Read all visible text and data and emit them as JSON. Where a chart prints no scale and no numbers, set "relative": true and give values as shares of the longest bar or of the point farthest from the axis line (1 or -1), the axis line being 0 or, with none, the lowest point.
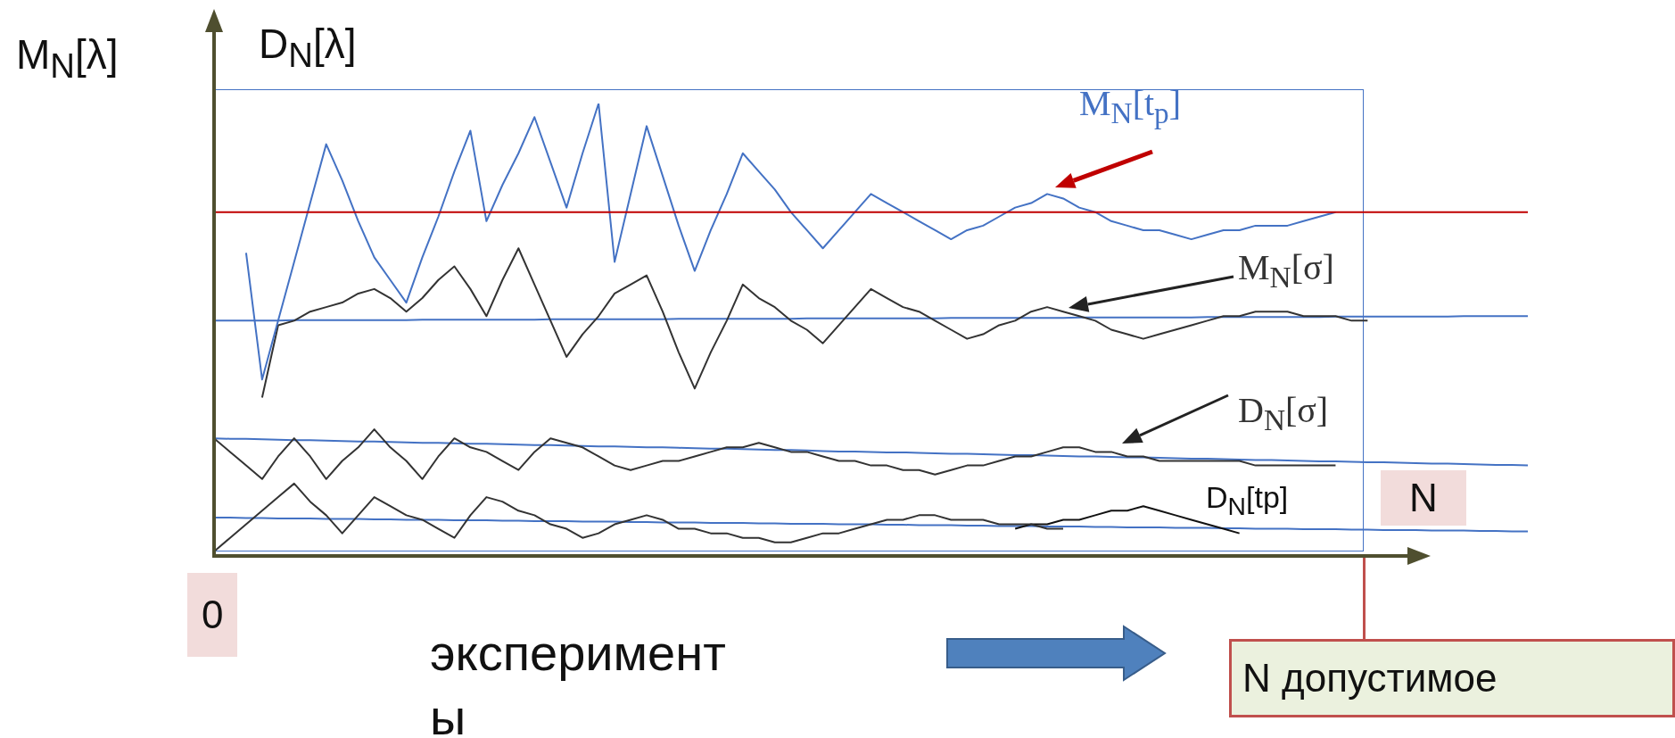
{
  "chart_data": {
    "type": "line",
    "relative": true,
    "ylabel": "M$_{N}$[λ]",
    "xlabel": "эксперименты",
    "annotations": [
      "D$_{N}$[λ]",
      "N",
      "0",
      "N допустимое"
    ],
    "categories": [
      null,
      null,
      null,
      null,
      null,
      null,
      null,
      null,
      null,
      null,
      null,
      null,
      null,
      null,
      null,
      null,
      null,
      null,
      null,
      null,
      null,
      null,
      null,
      null,
      null,
      null,
      null,
      null,
      null,
      null,
      null,
      null,
      null,
      null,
      null,
      null,
      null,
      null,
      null,
      null,
      null,
      null,
      null,
      null,
      null,
      null,
      null,
      null,
      null,
      null,
      null,
      null,
      null,
      null,
      null,
      null,
      null,
      null,
      null,
      null,
      null,
      null,
      null,
      null,
      null,
      null,
      null,
      null,
      null,
      null,
      null,
      null,
      null,
      null,
      null,
      null,
      null,
      null,
      null,
      null,
      null,
      null,
      null
    ],
    "ref_lines": [
      {
        "axis": "y",
        "value": 0.76,
        "color": "#c00000"
      }
    ],
    "series": [
      {
        "name": "M$_{N}$[t$_{p}$]",
        "color": "#4472c4",
        "values": [
          null,
          null,
          0.67,
          0.39,
          0.52,
          0.65,
          0.78,
          0.91,
          0.83,
          0.74,
          0.66,
          0.61,
          0.56,
          0.66,
          0.75,
          0.85,
          0.94,
          0.74,
          0.82,
          0.89,
          0.97,
          0.87,
          0.77,
          0.89,
          1,
          0.65,
          0.8,
          0.95,
          0.84,
          0.73,
          0.63,
          0.72,
          0.8,
          0.89,
          0.85,
          0.81,
          0.76,
          0.72,
          0.68,
          0.72,
          0.76,
          0.8,
          0.78,
          0.76,
          0.74,
          0.72,
          0.7,
          0.72,
          0.73,
          0.75,
          0.77,
          0.78,
          0.8,
          0.79,
          0.77,
          0.76,
          0.74,
          0.73,
          0.72,
          0.72,
          0.71,
          0.7,
          0.71,
          0.72,
          0.72,
          0.73,
          0.73,
          0.73,
          0.74,
          0.75,
          0.76,
          null,
          null,
          null,
          null,
          null,
          null,
          null,
          null,
          null,
          null,
          null,
          null
        ]
      },
      {
        "name": "M$_{N}$[σ]",
        "color": "#333333",
        "values": [
          null,
          null,
          null,
          0.35,
          0.51,
          0.52,
          0.54,
          0.55,
          0.56,
          0.58,
          0.59,
          0.57,
          0.54,
          0.57,
          0.61,
          0.64,
          0.59,
          0.53,
          0.61,
          0.68,
          0.6,
          0.52,
          0.44,
          0.49,
          0.53,
          0.58,
          0.6,
          0.62,
          0.54,
          0.45,
          0.37,
          0.45,
          0.52,
          0.6,
          0.57,
          0.55,
          0.52,
          0.5,
          0.47,
          0.51,
          0.55,
          0.59,
          0.57,
          0.55,
          0.54,
          0.52,
          0.5,
          0.48,
          0.49,
          0.51,
          0.52,
          0.54,
          0.55,
          0.54,
          0.53,
          0.52,
          0.5,
          0.49,
          0.48,
          0.49,
          0.5,
          0.51,
          0.52,
          0.53,
          0.53,
          0.54,
          0.54,
          0.54,
          0.53,
          0.53,
          0.53,
          0.52,
          0.52,
          null,
          null,
          null,
          null,
          null,
          null,
          null,
          null,
          null,
          null
        ]
      },
      {
        "name": "D$_{N}$[σ]",
        "color": "#333333",
        "values": [
          0.26,
          0.23,
          0.2,
          0.17,
          0.22,
          0.26,
          0.22,
          0.17,
          0.21,
          0.24,
          0.28,
          0.24,
          0.21,
          0.17,
          0.22,
          0.26,
          0.24,
          0.23,
          0.21,
          0.19,
          0.23,
          0.26,
          0.25,
          0.24,
          0.22,
          0.2,
          0.19,
          0.2,
          0.21,
          0.21,
          0.22,
          0.23,
          0.24,
          0.24,
          0.25,
          0.24,
          0.23,
          0.23,
          0.22,
          0.21,
          0.21,
          0.2,
          0.2,
          0.19,
          0.19,
          0.18,
          0.19,
          0.2,
          0.2,
          0.21,
          0.22,
          0.22,
          0.23,
          0.24,
          0.24,
          0.23,
          0.23,
          0.22,
          0.22,
          0.21,
          0.21,
          0.21,
          0.21,
          0.21,
          0.21,
          0.2,
          0.2,
          0.2,
          0.2,
          0.2,
          0.2,
          null,
          null,
          null,
          null,
          null,
          null,
          null,
          null,
          null,
          null,
          null,
          null
        ]
      },
      {
        "color": "#333333",
        "values": [
          0.01,
          0.04,
          0.07,
          0.1,
          0.13,
          0.16,
          0.12,
          0.09,
          0.05,
          0.09,
          0.13,
          0.11,
          0.09,
          0.08,
          0.06,
          0.04,
          0.09,
          0.13,
          0.12,
          0.1,
          0.09,
          0.07,
          0.06,
          0.04,
          0.05,
          0.07,
          0.08,
          0.09,
          0.08,
          0.06,
          0.06,
          0.05,
          0.05,
          0.04,
          0.04,
          0.03,
          0.03,
          0.04,
          0.05,
          0.05,
          0.06,
          0.07,
          0.08,
          0.08,
          0.09,
          0.09,
          0.08,
          0.08,
          0.08,
          0.07,
          0.07,
          0.07,
          0.06,
          0.06,
          null,
          null,
          null,
          null,
          null,
          null,
          null,
          null,
          null,
          null,
          null,
          null,
          null,
          null,
          null,
          null,
          null,
          null,
          null,
          null,
          null,
          null,
          null,
          null,
          null,
          null,
          null,
          null,
          null
        ]
      },
      {
        "name": "D$_{N}$[tp]",
        "color": "#111111",
        "values": [
          null,
          null,
          null,
          null,
          null,
          null,
          null,
          null,
          null,
          null,
          null,
          null,
          null,
          null,
          null,
          null,
          null,
          null,
          null,
          null,
          null,
          null,
          null,
          null,
          null,
          null,
          null,
          null,
          null,
          null,
          null,
          null,
          null,
          null,
          null,
          null,
          null,
          null,
          null,
          null,
          null,
          null,
          null,
          null,
          null,
          null,
          null,
          null,
          null,
          null,
          0.06,
          0.07,
          0.07,
          0.08,
          0.08,
          0.09,
          0.1,
          0.1,
          0.11,
          0.1,
          0.09,
          0.08,
          0.07,
          0.06,
          0.05,
          null,
          null,
          null,
          null,
          null,
          null,
          null,
          null,
          null,
          null,
          null,
          null,
          null,
          null,
          null,
          null,
          null,
          null
        ]
      },
      {
        "color": "#4472c4",
        "values": [
          0.52,
          0.52,
          0.52,
          0.52,
          0.52,
          0.521,
          0.521,
          0.521,
          0.521,
          0.521,
          0.521,
          0.521,
          0.521,
          0.522,
          0.522,
          0.522,
          0.522,
          0.522,
          0.522,
          0.522,
          0.522,
          0.523,
          0.523,
          0.523,
          0.523,
          0.523,
          0.523,
          0.523,
          0.523,
          0.524,
          0.524,
          0.524,
          0.524,
          0.524,
          0.524,
          0.524,
          0.524,
          0.525,
          0.525,
          0.525,
          0.525,
          0.525,
          0.525,
          0.525,
          0.525,
          0.525,
          0.526,
          0.526,
          0.526,
          0.526,
          0.526,
          0.526,
          0.526,
          0.526,
          0.527,
          0.527,
          0.527,
          0.527,
          0.527,
          0.527,
          0.527,
          0.527,
          0.528,
          0.528,
          0.528,
          0.528,
          0.528,
          0.528,
          0.528,
          0.528,
          0.529,
          0.529,
          0.529,
          0.529,
          0.529,
          0.529,
          0.529,
          0.529,
          0.53,
          0.53,
          0.53,
          0.53,
          0.53
        ]
      },
      {
        "color": "#4472c4",
        "values": [
          0.26,
          0.259,
          0.259,
          0.258,
          0.257,
          0.256,
          0.256,
          0.255,
          0.254,
          0.253,
          0.253,
          0.252,
          0.251,
          0.25,
          0.25,
          0.249,
          0.248,
          0.248,
          0.247,
          0.246,
          0.245,
          0.245,
          0.244,
          0.243,
          0.242,
          0.242,
          0.241,
          0.24,
          0.24,
          0.239,
          0.238,
          0.237,
          0.237,
          0.236,
          0.235,
          0.234,
          0.234,
          0.233,
          0.232,
          0.231,
          0.231,
          0.23,
          0.229,
          0.229,
          0.228,
          0.227,
          0.226,
          0.226,
          0.225,
          0.224,
          0.223,
          0.223,
          0.222,
          0.221,
          0.22,
          0.22,
          0.219,
          0.218,
          0.218,
          0.217,
          0.216,
          0.215,
          0.215,
          0.214,
          0.213,
          0.212,
          0.212,
          0.211,
          0.21,
          0.209,
          0.209,
          0.208,
          0.207,
          0.207,
          0.206,
          0.205,
          0.204,
          0.204,
          0.203,
          0.202,
          0.201,
          0.201,
          0.2
        ]
      },
      {
        "color": "#4472c4",
        "values": [
          0.085,
          0.085,
          0.084,
          0.084,
          0.083,
          0.083,
          0.083,
          0.082,
          0.082,
          0.082,
          0.081,
          0.081,
          0.08,
          0.08,
          0.08,
          0.079,
          0.079,
          0.079,
          0.078,
          0.078,
          0.077,
          0.077,
          0.077,
          0.076,
          0.076,
          0.076,
          0.075,
          0.075,
          0.074,
          0.074,
          0.074,
          0.073,
          0.073,
          0.073,
          0.072,
          0.072,
          0.071,
          0.071,
          0.071,
          0.07,
          0.07,
          0.07,
          0.069,
          0.069,
          0.068,
          0.068,
          0.068,
          0.067,
          0.067,
          0.066,
          0.066,
          0.066,
          0.065,
          0.065,
          0.065,
          0.064,
          0.064,
          0.063,
          0.063,
          0.063,
          0.062,
          0.062,
          0.062,
          0.061,
          0.061,
          0.06,
          0.06,
          0.06,
          0.059,
          0.059,
          0.059,
          0.058,
          0.058,
          0.057,
          0.057,
          0.057,
          0.056,
          0.056,
          0.056,
          0.055,
          0.055,
          0.054,
          0.054
        ]
      }
    ]
  }
}
